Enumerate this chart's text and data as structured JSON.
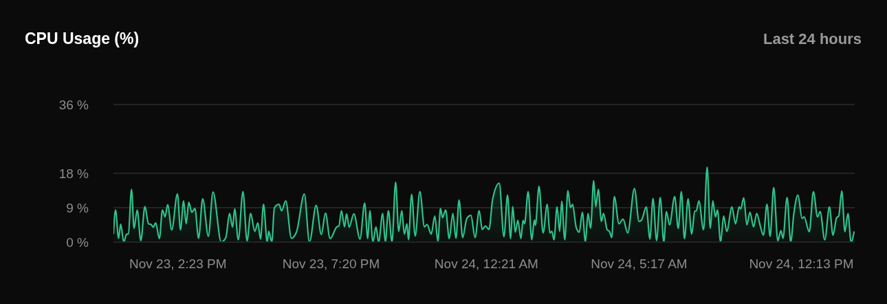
{
  "chart_data": {
    "type": "area",
    "title": "CPU Usage (%)",
    "subtitle": "Last 24 hours",
    "x": [
      "--11-23T12:18",
      "--11-23T12:22",
      "--11-23T12:28",
      "--11-23T12:32",
      "--11-23T12:38",
      "--11-23T12:43",
      "--11-23T12:47",
      "--11-23T12:53",
      "--11-23T12:58",
      "--11-23T13:04",
      "--11-23T13:11",
      "--11-23T13:19",
      "--11-23T13:26",
      "--11-23T13:31",
      "--11-23T13:35",
      "--11-23T13:40",
      "--11-23T13:47",
      "--11-23T13:53",
      "--11-23T13:58",
      "--11-23T14:03",
      "--11-23T14:11",
      "--11-23T14:22",
      "--11-23T14:28",
      "--11-23T14:34",
      "--11-23T14:39",
      "--11-23T14:44",
      "--11-23T14:50",
      "--11-23T14:56",
      "--11-23T15:03",
      "--11-23T15:11",
      "--11-23T15:22",
      "--11-23T15:31",
      "--11-23T15:47",
      "--11-23T15:56",
      "--11-23T16:03",
      "--11-23T16:09",
      "--11-23T16:13",
      "--11-23T16:20",
      "--11-23T16:29",
      "--11-23T16:37",
      "--11-23T16:44",
      "--11-23T16:52",
      "--11-23T16:58",
      "--11-23T17:03",
      "--11-23T17:09",
      "--11-23T17:16",
      "--11-23T17:19",
      "--11-23T17:25",
      "--11-23T17:30",
      "--11-23T17:39",
      "--11-23T17:44",
      "--11-23T17:52",
      "--11-23T18:03",
      "--11-23T18:13",
      "--11-23T18:28",
      "--11-23T18:38",
      "--11-23T18:51",
      "--11-23T19:01",
      "--11-23T19:09",
      "--11-23T19:18",
      "--11-23T19:31",
      "--11-23T19:35",
      "--11-23T19:40",
      "--11-23T19:46",
      "--11-23T19:50",
      "--11-23T19:55",
      "--11-23T20:04",
      "--11-23T20:16",
      "--11-23T20:25",
      "--11-23T20:31",
      "--11-23T20:35",
      "--11-23T20:41",
      "--11-23T20:47",
      "--11-23T20:52",
      "--11-23T21:00",
      "--11-23T21:05",
      "--11-23T21:11",
      "--11-23T21:18",
      "--11-23T21:25",
      "--11-23T21:31",
      "--11-23T21:37",
      "--11-23T21:42",
      "--11-23T21:47",
      "--11-23T21:50",
      "--11-23T21:56",
      "--11-23T22:03",
      "--11-23T22:12",
      "--11-23T22:21",
      "--11-23T22:26",
      "--11-23T22:34",
      "--11-23T22:41",
      "--11-23T22:47",
      "--11-23T22:52",
      "--11-23T22:56",
      "--11-23T23:02",
      "--11-23T23:09",
      "--11-23T23:16",
      "--11-23T23:22",
      "--11-23T23:28",
      "--11-23T23:35",
      "--11-23T23:43",
      "--11-23T23:51",
      "--11-23T23:59",
      "--11-24T00:07",
      "--11-24T00:13",
      "--11-24T00:19",
      "--11-24T00:26",
      "--11-24T00:33",
      "--11-24T00:46",
      "--11-24T00:55",
      "--11-24T01:02",
      "--11-24T01:08",
      "--11-24T01:12",
      "--11-24T01:17",
      "--11-24T01:22",
      "--11-24T01:28",
      "--11-24T01:32",
      "--11-24T01:35",
      "--11-24T01:42",
      "--11-24T01:49",
      "--11-24T01:54",
      "--11-24T01:56",
      "--11-24T02:03",
      "--11-24T02:11",
      "--11-24T02:19",
      "--11-24T02:24",
      "--11-24T02:28",
      "--11-24T02:32",
      "--11-24T02:38",
      "--11-24T02:43",
      "--11-24T02:47",
      "--11-24T02:53",
      "--11-24T02:59",
      "--11-24T03:04",
      "--11-24T03:08",
      "--11-24T03:15",
      "--11-24T03:21",
      "--11-24T03:27",
      "--11-24T03:33",
      "--11-24T03:38",
      "--11-24T03:43",
      "--11-24T03:49",
      "--11-24T03:53",
      "--11-24T03:58",
      "--11-24T04:04",
      "--11-24T04:08",
      "--11-24T04:15",
      "--11-24T04:20",
      "--11-24T04:24",
      "--11-24T04:29",
      "--11-24T04:38",
      "--11-24T04:46",
      "--11-24T04:55",
      "--11-24T05:08",
      "--11-24T05:17",
      "--11-24T05:22",
      "--11-24T05:31",
      "--11-24T05:38",
      "--11-24T05:44",
      "--11-24T05:51",
      "--11-24T05:58",
      "--11-24T06:05",
      "--11-24T06:10",
      "--11-24T06:16",
      "--11-24T06:26",
      "--11-24T06:33",
      "--11-24T06:39",
      "--11-24T06:45",
      "--11-24T06:52",
      "--11-24T06:59",
      "--11-24T07:05",
      "--11-24T07:08",
      "--11-24T07:13",
      "--11-24T07:22",
      "--11-24T07:29",
      "--11-24T07:35",
      "--11-24T07:40",
      "--11-24T07:45",
      "--11-24T07:49",
      "--11-24T07:55",
      "--11-24T08:01",
      "--11-24T08:07",
      "--11-24T08:17",
      "--11-24T08:24",
      "--11-24T08:31",
      "--11-24T08:34",
      "--11-24T08:40",
      "--11-24T08:46",
      "--11-24T08:52",
      "--11-24T08:59",
      "--11-24T09:05",
      "--11-24T09:12",
      "--11-24T09:18",
      "--11-24T09:25",
      "--11-24T09:31",
      "--11-24T09:38",
      "--11-24T09:46",
      "--11-24T09:52",
      "--11-24T09:56",
      "--11-24T10:04",
      "--11-24T10:11",
      "--11-24T10:17",
      "--11-24T10:25",
      "--11-24T10:33",
      "--11-24T10:37",
      "--11-24T10:47",
      "--11-24T10:55",
      "--11-24T11:03",
      "--11-24T11:08",
      "--11-24T11:17",
      "--11-24T11:26",
      "--11-24T11:33",
      "--11-24T11:40",
      "--11-24T11:44",
      "--11-24T11:50",
      "--11-24T11:56",
      "--11-24T12:02",
      "--11-24T12:08",
      "--11-24T12:14"
    ],
    "series": [
      {
        "color": "#2ec28b",
        "values": [
          2.1,
          8.4,
          1.0,
          4.7,
          0,
          2.0,
          2.2,
          13.8,
          3.6,
          8.4,
          0.4,
          9.3,
          4.8,
          4.6,
          3.9,
          5.0,
          0.9,
          8.4,
          6.6,
          9.8,
          3.2,
          12.6,
          3.2,
          10.8,
          4.8,
          10.4,
          7.8,
          8.8,
          1.0,
          11.3,
          1.5,
          13.1,
          0,
          1.2,
          7.5,
          3.9,
          8.7,
          0.6,
          13.2,
          0.3,
          7.5,
          2.8,
          5.0,
          0.8,
          9.9,
          0,
          2.8,
          0,
          9.0,
          9.9,
          8.2,
          10.8,
          1.0,
          2.7,
          12.6,
          0,
          9.6,
          2.0,
          7.6,
          0.9,
          4.0,
          4.2,
          8.2,
          4.0,
          7.4,
          3.9,
          7.4,
          0.8,
          10.2,
          0.9,
          8.2,
          0,
          4.0,
          0,
          7.5,
          0,
          8.2,
          0,
          15.7,
          2.8,
          8.2,
          2.1,
          4.8,
          0.6,
          12.5,
          1.6,
          13.2,
          4.0,
          4.6,
          2.1,
          6.8,
          0.2,
          8.8,
          6.4,
          8.4,
          0.9,
          7.5,
          1.0,
          11.0,
          1.2,
          6.2,
          7.0,
          1.2,
          8.2,
          3.3,
          4.2,
          3.3,
          11.1,
          15.4,
          1.4,
          12.3,
          0.9,
          9.3,
          2.6,
          5.7,
          0.9,
          5.7,
          4.8,
          13.2,
          0.6,
          5.8,
          4.4,
          14.6,
          2.4,
          9.9,
          2.4,
          2.8,
          0.6,
          9.2,
          2.8,
          10.7,
          0.6,
          13.5,
          9.0,
          9.9,
          3.9,
          2.6,
          7.8,
          0,
          7.5,
          3.6,
          16.1,
          9.3,
          13.8,
          5.4,
          7.5,
          3.3,
          2.7,
          1.2,
          11.9,
          4.8,
          6.0,
          2.4,
          14.0,
          5.4,
          5.8,
          9.2,
          0.8,
          11.4,
          0.4,
          11.7,
          0,
          8.0,
          4.5,
          11.9,
          3.6,
          13.2,
          0.9,
          11.3,
          2.1,
          8.1,
          8.2,
          10.8,
          3.2,
          19.6,
          3.6,
          10.8,
          6.6,
          8.4,
          0,
          6.8,
          2.8,
          9.2,
          4.8,
          9.2,
          8.7,
          11.6,
          4.5,
          7.8,
          4.0,
          7.5,
          4.2,
          1.8,
          9.9,
          1.5,
          14.3,
          0.3,
          3.0,
          1.0,
          11.7,
          0,
          7.4,
          12.3,
          6.2,
          6.6,
          2.7,
          13.2,
          6.6,
          8.0,
          0.6,
          9.2,
          1.8,
          6.4,
          6.8,
          13.4,
          2.7,
          7.5,
          0,
          2.8
        ]
      }
    ],
    "xlim": [
      "--11-23T12:18",
      "--11-24T12:15"
    ],
    "xticks": [
      {
        "value": "--11-23T14:23",
        "label": "Nov 23, 2:23 PM"
      },
      {
        "value": "--11-23T19:20",
        "label": "Nov 23, 7:20 PM"
      },
      {
        "value": "--11-24T00:21",
        "label": "Nov 24, 12:21 AM"
      },
      {
        "value": "--11-24T05:17",
        "label": "Nov 24, 5:17 AM"
      },
      {
        "value": "--11-24T12:13",
        "label": "Nov 24, 12:13 PM"
      }
    ],
    "ylim": [
      0,
      36
    ],
    "yticks": [
      {
        "value": 0,
        "label": "0 %"
      },
      {
        "value": 9,
        "label": "9 %"
      },
      {
        "value": 18,
        "label": "18 %"
      },
      {
        "value": 36,
        "label": "36 %"
      }
    ],
    "grid": "y",
    "legend": false,
    "marker": "none",
    "line_style": "solid"
  }
}
